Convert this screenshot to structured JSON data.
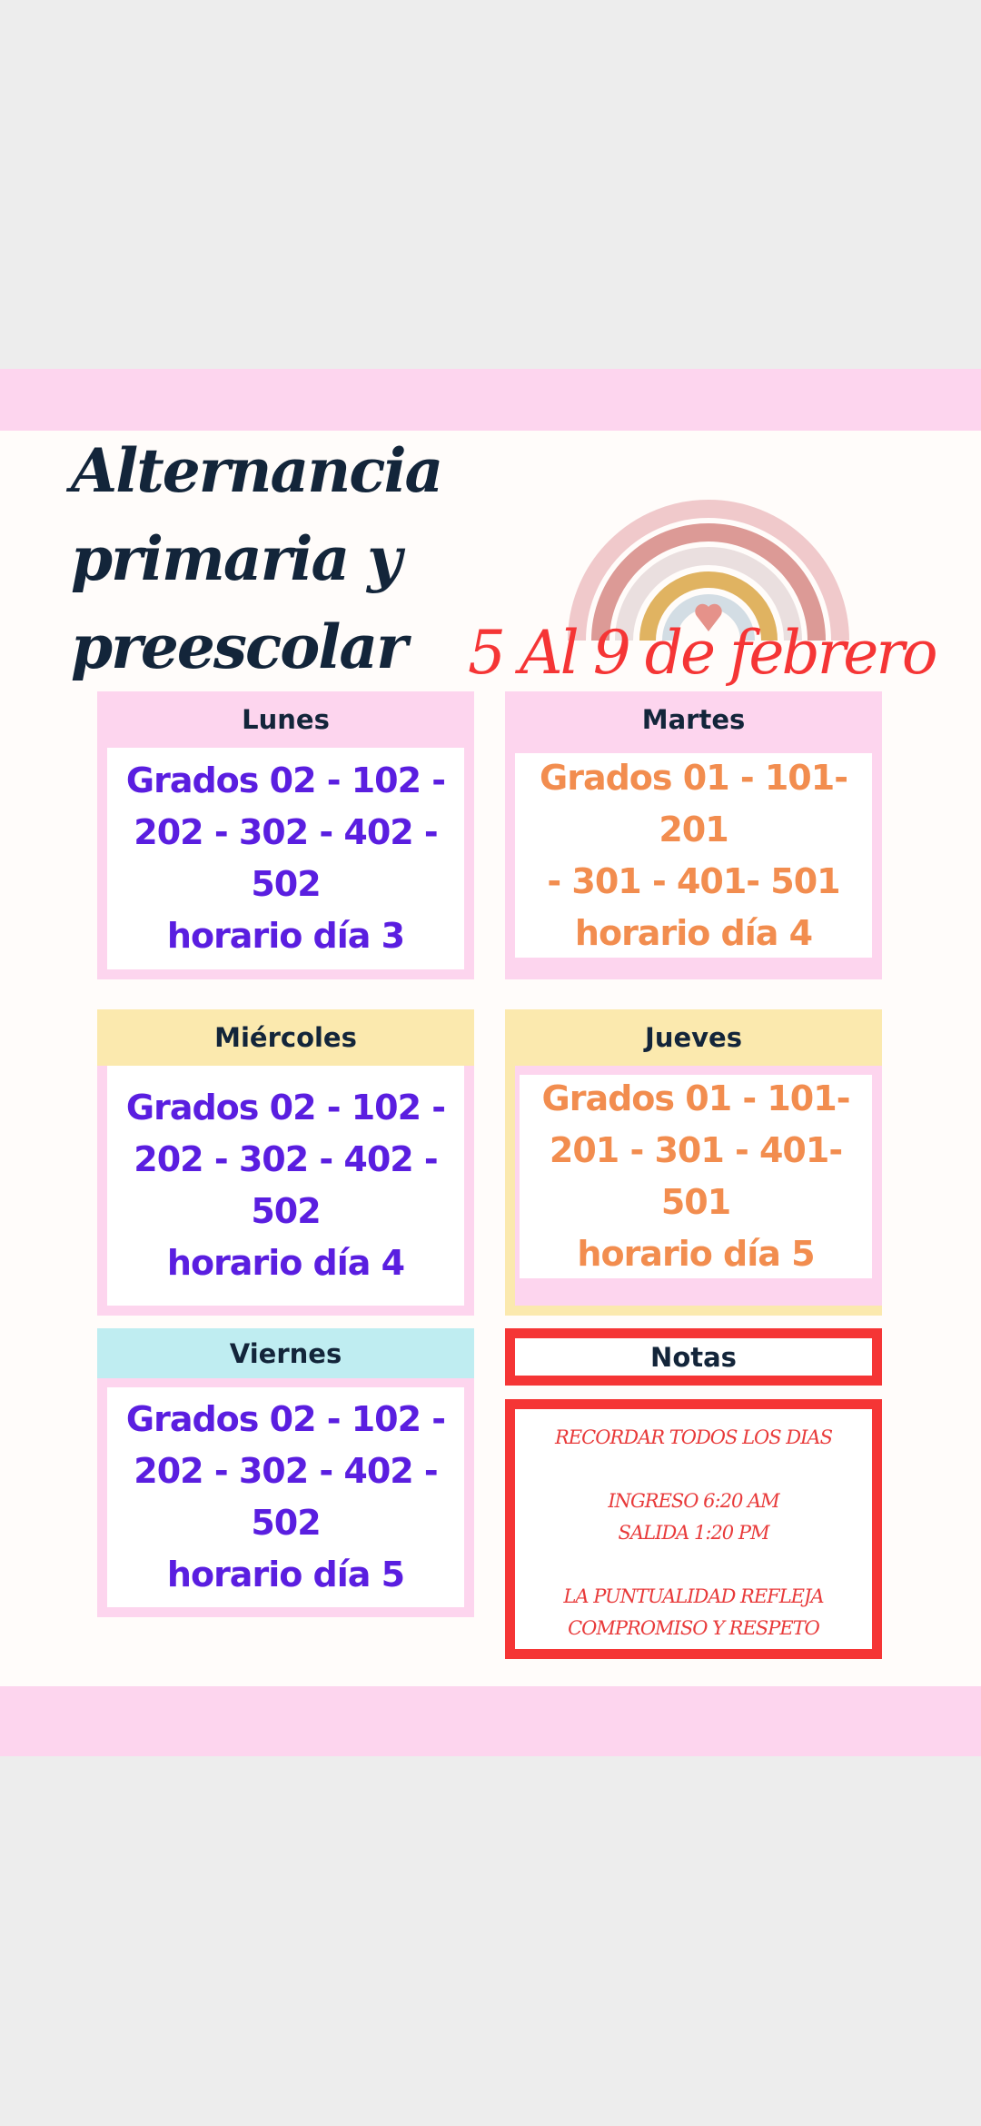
{
  "title_lines": [
    "Alternancia",
    "primaria y",
    "preescolar"
  ],
  "date": "5 Al 9 de febrero",
  "days": [
    {
      "name": "Lunes",
      "lines": [
        "Grados 02 - 102 -",
        "202 - 302 - 402 -",
        "502",
        "horario día 3"
      ]
    },
    {
      "name": "Martes",
      "lines": [
        "Grados 01 - 101- 201",
        "- 301 - 401- 501",
        "horario día 4"
      ]
    },
    {
      "name": "Miércoles",
      "lines": [
        "Grados 02 - 102 -",
        "202 - 302 - 402 -",
        "502",
        "horario día 4"
      ]
    },
    {
      "name": "Jueves",
      "lines": [
        "Grados 01 - 101-",
        "201 - 301 - 401- 501",
        "horario día 5"
      ]
    },
    {
      "name": "Viernes",
      "lines": [
        "Grados 02 - 102 -",
        "202 - 302 - 402 -",
        "502",
        "horario día 5"
      ]
    }
  ],
  "notes": {
    "title": "Notas",
    "lines": [
      "RECORDAR TODOS LOS DIAS",
      "",
      "INGRESO 6:20 AM",
      "SALIDA 1:20 PM",
      "",
      "LA PUNTUALIDAD REFLEJA",
      "COMPROMISO Y RESPETO"
    ]
  },
  "colors": {
    "purple": "#5a1ee0",
    "orange": "#f28d4f",
    "red": "#f53535",
    "pink": "#fdd5ee",
    "yellow": "#fbe9ae",
    "cyan": "#bfedf1"
  }
}
